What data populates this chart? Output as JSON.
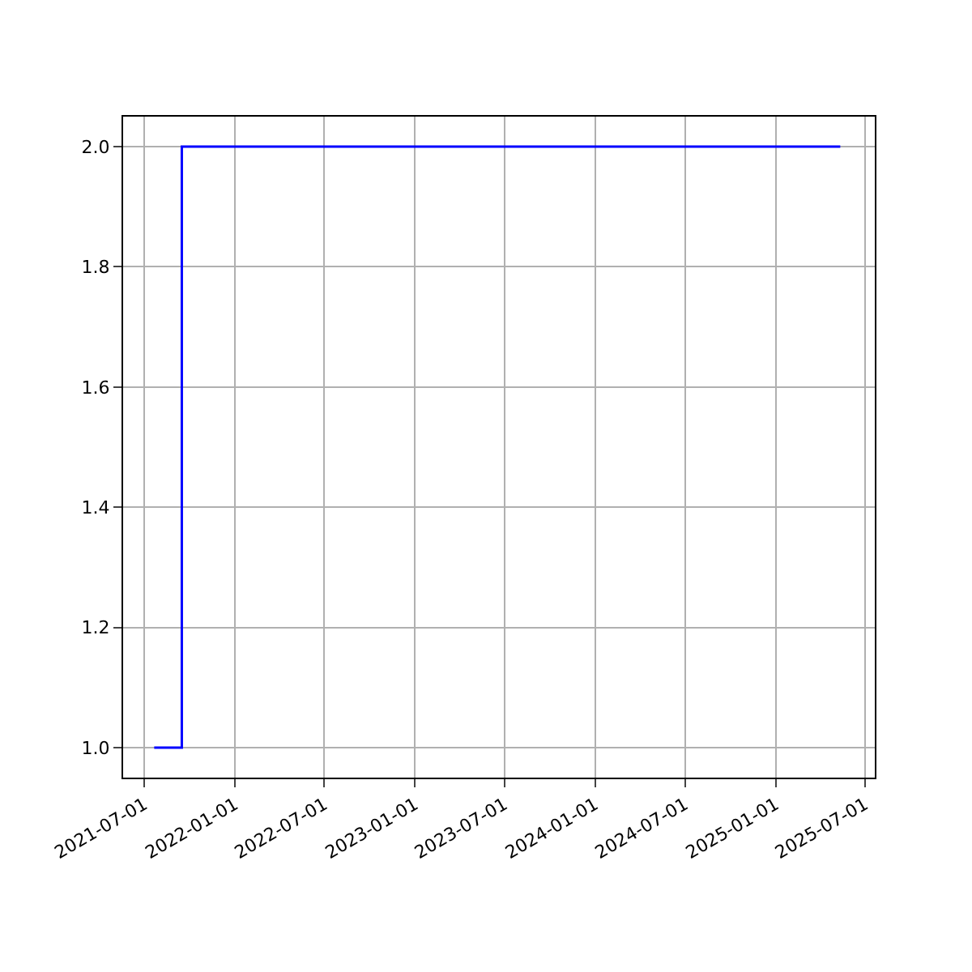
{
  "chart_data": {
    "type": "step",
    "x": [
      "2021-07-21",
      "2021-09-15",
      "2025-05-12"
    ],
    "series": [
      {
        "color": "#0000ff",
        "values": [
          1,
          2,
          2
        ]
      }
    ],
    "xlim": [
      "2021-05-19",
      "2025-07-21"
    ],
    "xticks": [
      "2021-07-01",
      "2022-01-01",
      "2022-07-01",
      "2023-01-01",
      "2023-07-01",
      "2024-01-01",
      "2024-07-01",
      "2025-01-01",
      "2025-07-01"
    ],
    "ylim": [
      0.95,
      2.05
    ],
    "yticks": [
      {
        "value": 1.0,
        "label": "1.0"
      },
      {
        "value": 1.2,
        "label": "1.2"
      },
      {
        "value": 1.4,
        "label": "1.4"
      },
      {
        "value": 1.6,
        "label": "1.6"
      },
      {
        "value": 1.8,
        "label": "1.8"
      },
      {
        "value": 2.0,
        "label": "2.0"
      }
    ],
    "grid": true,
    "legend": false
  }
}
